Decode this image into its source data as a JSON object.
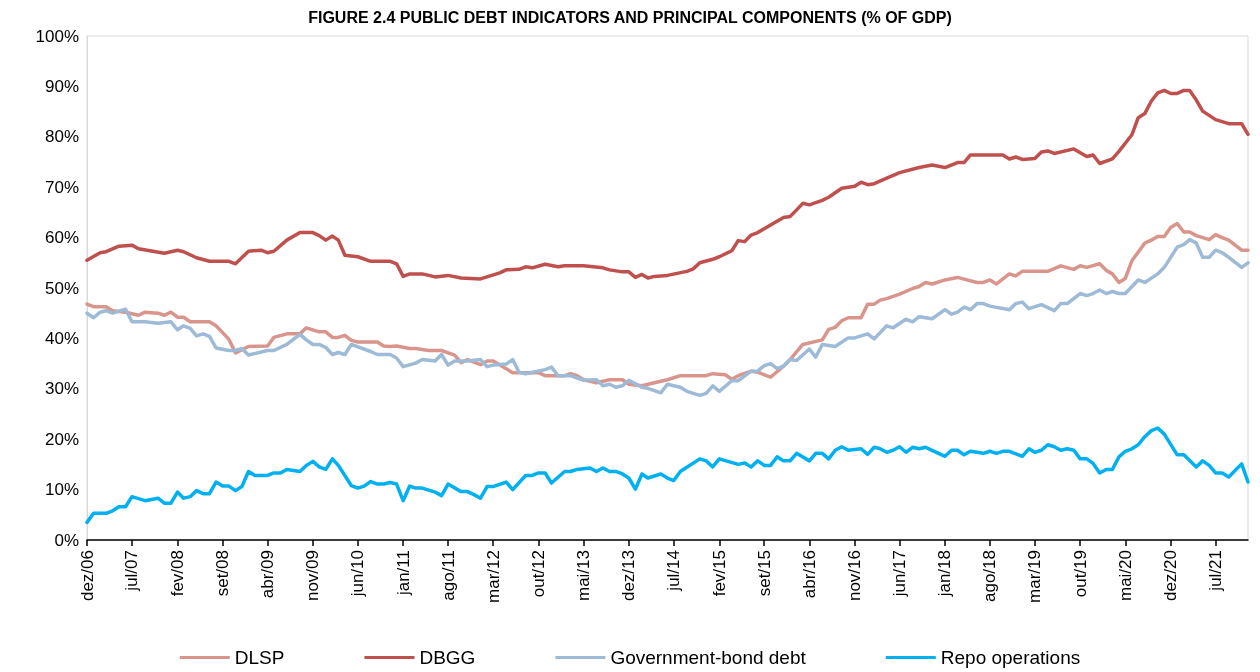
{
  "chart_data": {
    "type": "line",
    "title": "FIGURE 2.4 PUBLIC DEBT INDICATORS AND PRINCIPAL COMPONENTS (% OF GDP)",
    "xlim": [
      "2006-12",
      "2021-12"
    ],
    "xticks": [
      {
        "value": "2006-12",
        "label": "dez/06"
      },
      {
        "value": "2007-07",
        "label": "jul/07"
      },
      {
        "value": "2008-02",
        "label": "fev/08"
      },
      {
        "value": "2008-09",
        "label": "set/08"
      },
      {
        "value": "2009-04",
        "label": "abr/09"
      },
      {
        "value": "2009-11",
        "label": "nov/09"
      },
      {
        "value": "2010-06",
        "label": "jun/10"
      },
      {
        "value": "2011-01",
        "label": "jan/11"
      },
      {
        "value": "2011-08",
        "label": "ago/11"
      },
      {
        "value": "2012-03",
        "label": "mar/12"
      },
      {
        "value": "2012-10",
        "label": "out/12"
      },
      {
        "value": "2013-05",
        "label": "mai/13"
      },
      {
        "value": "2013-12",
        "label": "dez/13"
      },
      {
        "value": "2014-07",
        "label": "jul/14"
      },
      {
        "value": "2015-02",
        "label": "fev/15"
      },
      {
        "value": "2015-09",
        "label": "set/15"
      },
      {
        "value": "2016-04",
        "label": "abr/16"
      },
      {
        "value": "2016-11",
        "label": "nov/16"
      },
      {
        "value": "2017-06",
        "label": "jun/17"
      },
      {
        "value": "2018-01",
        "label": "jan/18"
      },
      {
        "value": "2018-08",
        "label": "ago/18"
      },
      {
        "value": "2019-03",
        "label": "mar/19"
      },
      {
        "value": "2019-10",
        "label": "out/19"
      },
      {
        "value": "2020-05",
        "label": "mai/20"
      },
      {
        "value": "2020-12",
        "label": "dez/20"
      },
      {
        "value": "2021-07",
        "label": "jul/21"
      }
    ],
    "ylim": [
      0,
      100
    ],
    "yticks": [
      {
        "value": 0,
        "label": "0%"
      },
      {
        "value": 10,
        "label": "10%"
      },
      {
        "value": 20,
        "label": "20%"
      },
      {
        "value": 30,
        "label": "30%"
      },
      {
        "value": 40,
        "label": "40%"
      },
      {
        "value": 50,
        "label": "50%"
      },
      {
        "value": 60,
        "label": "60%"
      },
      {
        "value": 70,
        "label": "70%"
      },
      {
        "value": 80,
        "label": "80%"
      },
      {
        "value": 90,
        "label": "90%"
      },
      {
        "value": 100,
        "label": "100%"
      }
    ],
    "legend": "bottom",
    "marker": "none",
    "series": [
      {
        "name": "DLSP",
        "color": "#d9958c",
        "x": [
          "2006-12",
          "2007-01",
          "2007-03",
          "2007-04",
          "2007-06",
          "2007-08",
          "2007-09",
          "2007-11",
          "2007-12",
          "2008-01",
          "2008-02",
          "2008-03",
          "2008-04",
          "2008-07",
          "2008-08",
          "2008-10",
          "2008-11",
          "2009-01",
          "2009-04",
          "2009-05",
          "2009-07",
          "2009-09",
          "2009-10",
          "2009-12",
          "2010-01",
          "2010-02",
          "2010-03",
          "2010-04",
          "2010-05",
          "2010-06",
          "2010-09",
          "2010-10",
          "2010-11",
          "2010-12",
          "2011-02",
          "2011-03",
          "2011-05",
          "2011-07",
          "2011-09",
          "2011-10",
          "2011-11",
          "2012-01",
          "2012-02",
          "2012-03",
          "2012-06",
          "2012-10",
          "2012-11",
          "2013-02",
          "2013-03",
          "2013-04",
          "2013-05",
          "2013-07",
          "2013-09",
          "2013-11",
          "2013-12",
          "2014-02",
          "2014-04",
          "2014-06",
          "2014-08",
          "2014-12",
          "2015-01",
          "2015-03",
          "2015-04",
          "2015-05",
          "2015-07",
          "2015-08",
          "2015-10",
          "2015-12",
          "2016-01",
          "2016-03",
          "2016-06",
          "2016-07",
          "2016-08",
          "2016-09",
          "2016-10",
          "2016-12",
          "2017-01",
          "2017-02",
          "2017-03",
          "2017-04",
          "2017-06",
          "2017-08",
          "2017-09",
          "2017-10",
          "2017-11",
          "2018-01",
          "2018-03",
          "2018-06",
          "2018-07",
          "2018-08",
          "2018-09",
          "2018-11",
          "2018-12",
          "2019-01",
          "2019-05",
          "2019-07",
          "2019-09",
          "2019-10",
          "2019-11",
          "2020-01",
          "2020-02",
          "2020-03",
          "2020-04",
          "2020-05",
          "2020-06",
          "2020-08",
          "2020-09",
          "2020-10",
          "2020-11",
          "2020-12",
          "2021-01",
          "2021-02",
          "2021-03",
          "2021-04",
          "2021-06",
          "2021-07",
          "2021-08",
          "2021-09",
          "2021-11",
          "2021-12"
        ],
        "values": [
          46.8,
          46.3,
          46.3,
          45.5,
          45.2,
          44.6,
          45.2,
          45,
          44.6,
          45.2,
          44.2,
          44.2,
          43.3,
          43.3,
          42.5,
          39.8,
          37.1,
          38.4,
          38.5,
          40.2,
          40.9,
          40.9,
          42.1,
          41.3,
          41.3,
          40.2,
          40.2,
          40.6,
          39.6,
          39.3,
          39.3,
          38.5,
          38.4,
          38.5,
          38,
          38,
          37.6,
          37.6,
          36.7,
          35.2,
          35.8,
          34.8,
          35.5,
          35.5,
          33.2,
          33.2,
          32.6,
          32.6,
          33,
          32.6,
          31.8,
          31.2,
          31.8,
          31.8,
          30.9,
          30.6,
          31.2,
          31.8,
          32.6,
          32.6,
          33,
          32.8,
          31.9,
          32.6,
          33.5,
          33.3,
          32.3,
          34.5,
          35.8,
          38.8,
          39.7,
          41.8,
          42.2,
          43.5,
          44.1,
          44.1,
          46.8,
          46.8,
          47.6,
          47.9,
          48.8,
          49.9,
          50.3,
          51.1,
          50.8,
          51.6,
          52.1,
          51.1,
          51.1,
          51.6,
          50.8,
          52.8,
          52.4,
          53.3,
          53.3,
          54.4,
          53.7,
          54.4,
          54.1,
          54.8,
          53.5,
          52.8,
          51.1,
          51.9,
          55.4,
          58.9,
          59.5,
          60.2,
          60.2,
          62,
          62.8,
          61.1,
          61.1,
          60.4,
          59.6,
          60.6,
          60,
          59.5,
          57.5,
          57.5
        ]
      },
      {
        "name": "DBGG",
        "color": "#c0504d",
        "x": [
          "2006-12",
          "2007-02",
          "2007-03",
          "2007-05",
          "2007-07",
          "2007-08",
          "2007-12",
          "2008-02",
          "2008-03",
          "2008-05",
          "2008-07",
          "2008-10",
          "2008-11",
          "2009-01",
          "2009-03",
          "2009-04",
          "2009-05",
          "2009-07",
          "2009-09",
          "2009-11",
          "2009-12",
          "2010-01",
          "2010-02",
          "2010-03",
          "2010-04",
          "2010-06",
          "2010-08",
          "2010-11",
          "2010-12",
          "2011-01",
          "2011-02",
          "2011-04",
          "2011-06",
          "2011-08",
          "2011-10",
          "2012-01",
          "2012-04",
          "2012-05",
          "2012-07",
          "2012-08",
          "2012-09",
          "2012-11",
          "2013-01",
          "2013-02",
          "2013-05",
          "2013-08",
          "2013-09",
          "2013-11",
          "2013-12",
          "2014-01",
          "2014-02",
          "2014-03",
          "2014-04",
          "2014-06",
          "2014-09",
          "2014-10",
          "2014-11",
          "2015-01",
          "2015-02",
          "2015-04",
          "2015-05",
          "2015-06",
          "2015-07",
          "2015-08",
          "2015-10",
          "2015-12",
          "2016-01",
          "2016-02",
          "2016-03",
          "2016-04",
          "2016-06",
          "2016-07",
          "2016-09",
          "2016-11",
          "2016-12",
          "2017-01",
          "2017-02",
          "2017-04",
          "2017-06",
          "2017-09",
          "2017-11",
          "2018-01",
          "2018-03",
          "2018-04",
          "2018-05",
          "2018-10",
          "2018-11",
          "2018-12",
          "2019-01",
          "2019-03",
          "2019-04",
          "2019-05",
          "2019-06",
          "2019-09",
          "2019-11",
          "2019-12",
          "2020-01",
          "2020-03",
          "2020-04",
          "2020-06",
          "2020-07",
          "2020-08",
          "2020-09",
          "2020-10",
          "2020-11",
          "2020-12",
          "2021-01",
          "2021-02",
          "2021-03",
          "2021-04",
          "2021-05",
          "2021-07",
          "2021-09",
          "2021-11",
          "2021-12"
        ],
        "values": [
          55.5,
          57,
          57.2,
          58.3,
          58.5,
          57.8,
          56.9,
          57.5,
          57.2,
          56,
          55.3,
          55.3,
          54.8,
          57.3,
          57.5,
          57,
          57.3,
          59.5,
          61,
          61,
          60.4,
          59.5,
          60.3,
          59.5,
          56.5,
          56.2,
          55.3,
          55.3,
          54.8,
          52.3,
          52.8,
          52.8,
          52.2,
          52.5,
          52,
          51.8,
          53,
          53.6,
          53.7,
          54.2,
          54,
          54.7,
          54.2,
          54.4,
          54.4,
          54,
          53.6,
          53.2,
          53.2,
          52.1,
          52.7,
          52,
          52.3,
          52.5,
          53.3,
          53.8,
          55,
          55.7,
          56.2,
          57.4,
          59.4,
          59.2,
          60.5,
          61,
          62.5,
          64,
          64.2,
          65.5,
          66.8,
          66.5,
          67.4,
          68,
          69.8,
          70.2,
          71,
          70.5,
          70.7,
          71.8,
          72.9,
          73.9,
          74.4,
          73.9,
          74.9,
          74.9,
          76.4,
          76.4,
          75.6,
          76,
          75.5,
          75.7,
          77,
          77.2,
          76.7,
          77.6,
          76.1,
          76.4,
          74.7,
          75.6,
          77.1,
          80.4,
          83.8,
          84.6,
          87.1,
          88.7,
          89.2,
          88.6,
          88.6,
          89.2,
          89.2,
          87.3,
          85.1,
          83.4,
          82.6,
          82.6,
          80.5
        ]
      },
      {
        "name": "Government-bond debt",
        "color": "#9dbad6",
        "x": [
          "2006-12",
          "2007-01",
          "2007-02",
          "2007-03",
          "2007-04",
          "2007-06",
          "2007-07",
          "2007-09",
          "2007-11",
          "2008-01",
          "2008-02",
          "2008-03",
          "2008-04",
          "2008-05",
          "2008-06",
          "2008-07",
          "2008-08",
          "2008-10",
          "2008-11",
          "2008-12",
          "2009-01",
          "2009-04",
          "2009-05",
          "2009-07",
          "2009-09",
          "2009-10",
          "2009-11",
          "2009-12",
          "2010-01",
          "2010-02",
          "2010-03",
          "2010-04",
          "2010-05",
          "2010-08",
          "2010-09",
          "2010-11",
          "2010-12",
          "2011-01",
          "2011-03",
          "2011-04",
          "2011-06",
          "2011-07",
          "2011-08",
          "2011-09",
          "2011-11",
          "2012-01",
          "2012-02",
          "2012-03",
          "2012-05",
          "2012-06",
          "2012-07",
          "2012-08",
          "2012-11",
          "2012-12",
          "2013-01",
          "2013-03",
          "2013-05",
          "2013-07",
          "2013-08",
          "2013-09",
          "2013-10",
          "2013-11",
          "2013-12",
          "2014-02",
          "2014-03",
          "2014-05",
          "2014-06",
          "2014-08",
          "2014-09",
          "2014-11",
          "2014-12",
          "2015-01",
          "2015-02",
          "2015-04",
          "2015-05",
          "2015-07",
          "2015-08",
          "2015-09",
          "2015-10",
          "2015-11",
          "2015-12",
          "2016-01",
          "2016-02",
          "2016-04",
          "2016-05",
          "2016-06",
          "2016-08",
          "2016-10",
          "2016-11",
          "2017-01",
          "2017-02",
          "2017-04",
          "2017-05",
          "2017-07",
          "2017-08",
          "2017-09",
          "2017-11",
          "2018-01",
          "2018-02",
          "2018-03",
          "2018-04",
          "2018-05",
          "2018-06",
          "2018-07",
          "2018-08",
          "2018-11",
          "2018-12",
          "2019-01",
          "2019-02",
          "2019-04",
          "2019-06",
          "2019-07",
          "2019-08",
          "2019-10",
          "2019-11",
          "2019-12",
          "2020-01",
          "2020-02",
          "2020-03",
          "2020-04",
          "2020-05",
          "2020-07",
          "2020-08",
          "2020-10",
          "2020-11",
          "2021-01",
          "2021-02",
          "2021-03",
          "2021-04",
          "2021-05",
          "2021-06",
          "2021-07",
          "2021-08",
          "2021-09",
          "2021-11",
          "2021-12"
        ],
        "values": [
          45,
          44.1,
          45.2,
          45.5,
          45,
          45.8,
          43.3,
          43.3,
          43,
          43.3,
          41.7,
          42.5,
          42,
          40.5,
          40.9,
          40.4,
          38.1,
          37.6,
          37.6,
          38,
          36.7,
          37.6,
          37.6,
          38.8,
          40.8,
          39.7,
          38.8,
          38.8,
          38.2,
          36.8,
          37.2,
          36.8,
          38.8,
          37.4,
          36.8,
          36.8,
          36.1,
          34.4,
          35.1,
          35.8,
          35.5,
          36.8,
          34.7,
          35.5,
          35.5,
          35.8,
          34.4,
          34.7,
          34.9,
          35.8,
          33.3,
          33,
          33.8,
          34.3,
          32.6,
          32.6,
          31.7,
          31.8,
          30.6,
          30.9,
          30.3,
          30.6,
          31.7,
          30.3,
          30.1,
          29.2,
          30.9,
          30.3,
          29.5,
          28.7,
          29.1,
          30.6,
          29.5,
          31.6,
          31.6,
          33.5,
          33.5,
          34.6,
          35,
          34,
          34.5,
          35.8,
          35.6,
          37.9,
          36.3,
          38.8,
          38.4,
          40.1,
          40.1,
          40.9,
          39.9,
          42.5,
          42.1,
          43.8,
          43.3,
          44.3,
          43.9,
          45.7,
          44.8,
          45.2,
          46.2,
          45.7,
          46.9,
          46.9,
          46.4,
          45.7,
          46.9,
          47.2,
          45.9,
          46.7,
          45.5,
          46.9,
          46.9,
          48.9,
          48.5,
          48.9,
          49.6,
          48.9,
          49.3,
          48.9,
          48.9,
          51.6,
          51.1,
          52.8,
          54.1,
          58.1,
          58.6,
          59.6,
          58.9,
          56.1,
          56.1,
          57.5,
          57,
          56.1,
          54.1,
          55
        ]
      },
      {
        "name": "Repo operations",
        "color": "#00b0f0",
        "x": [
          "2006-12",
          "2007-01",
          "2007-03",
          "2007-04",
          "2007-05",
          "2007-06",
          "2007-07",
          "2007-09",
          "2007-11",
          "2007-12",
          "2008-01",
          "2008-02",
          "2008-03",
          "2008-04",
          "2008-05",
          "2008-06",
          "2008-07",
          "2008-08",
          "2008-09",
          "2008-10",
          "2008-11",
          "2008-12",
          "2009-01",
          "2009-02",
          "2009-04",
          "2009-05",
          "2009-06",
          "2009-07",
          "2009-09",
          "2009-10",
          "2009-11",
          "2009-12",
          "2010-01",
          "2010-02",
          "2010-03",
          "2010-05",
          "2010-06",
          "2010-07",
          "2010-08",
          "2010-09",
          "2010-10",
          "2010-11",
          "2010-12",
          "2011-01",
          "2011-02",
          "2011-03",
          "2011-04",
          "2011-06",
          "2011-07",
          "2011-08",
          "2011-10",
          "2011-11",
          "2011-12",
          "2012-01",
          "2012-02",
          "2012-03",
          "2012-05",
          "2012-06",
          "2012-08",
          "2012-09",
          "2012-10",
          "2012-11",
          "2012-12",
          "2013-02",
          "2013-03",
          "2013-04",
          "2013-06",
          "2013-07",
          "2013-08",
          "2013-09",
          "2013-10",
          "2013-11",
          "2013-12",
          "2014-01",
          "2014-02",
          "2014-03",
          "2014-05",
          "2014-06",
          "2014-07",
          "2014-08",
          "2014-11",
          "2014-12",
          "2015-01",
          "2015-02",
          "2015-05",
          "2015-06",
          "2015-07",
          "2015-08",
          "2015-09",
          "2015-10",
          "2015-11",
          "2015-12",
          "2016-01",
          "2016-02",
          "2016-04",
          "2016-05",
          "2016-06",
          "2016-07",
          "2016-08",
          "2016-09",
          "2016-10",
          "2016-12",
          "2017-01",
          "2017-02",
          "2017-03",
          "2017-04",
          "2017-05",
          "2017-06",
          "2017-07",
          "2017-08",
          "2017-09",
          "2017-10",
          "2017-11",
          "2018-01",
          "2018-02",
          "2018-03",
          "2018-04",
          "2018-05",
          "2018-07",
          "2018-08",
          "2018-09",
          "2018-10",
          "2018-11",
          "2019-01",
          "2019-02",
          "2019-03",
          "2019-04",
          "2019-05",
          "2019-06",
          "2019-07",
          "2019-08",
          "2019-09",
          "2019-10",
          "2019-11",
          "2019-12",
          "2020-01",
          "2020-02",
          "2020-03",
          "2020-04",
          "2020-05",
          "2020-06",
          "2020-07",
          "2020-08",
          "2020-09",
          "2020-10",
          "2020-11",
          "2021-01",
          "2021-02",
          "2021-04",
          "2021-05",
          "2021-06",
          "2021-07",
          "2021-08",
          "2021-09",
          "2021-11",
          "2021-12"
        ],
        "values": [
          3.5,
          5.3,
          5.3,
          5.8,
          6.6,
          6.6,
          8.6,
          7.8,
          8.3,
          7.3,
          7.3,
          9.5,
          8.3,
          8.6,
          9.8,
          9.2,
          9.2,
          11.5,
          10.7,
          10.7,
          9.8,
          10.6,
          13.6,
          12.8,
          12.8,
          13.3,
          13.3,
          14,
          13.6,
          14.8,
          15.6,
          14.5,
          14,
          16.1,
          14.8,
          10.8,
          10.3,
          10.7,
          11.6,
          11.1,
          11.1,
          11.4,
          11.1,
          7.8,
          10.7,
          10.3,
          10.3,
          9.5,
          8.8,
          11.1,
          9.6,
          9.6,
          9,
          8.3,
          10.6,
          10.6,
          11.5,
          10,
          12.8,
          12.8,
          13.3,
          13.3,
          11.3,
          13.6,
          13.6,
          14,
          14.3,
          13.6,
          14.3,
          13.6,
          13.6,
          13.1,
          12.3,
          10.1,
          13.1,
          12.3,
          13.1,
          12.3,
          11.8,
          13.6,
          16.1,
          15.7,
          14.5,
          16.1,
          15,
          15.3,
          14.5,
          15.7,
          14.8,
          14.8,
          16.5,
          15.7,
          15.7,
          17.2,
          15.7,
          17.2,
          17.2,
          16.1,
          17.8,
          18.5,
          17.8,
          18.1,
          17,
          18.4,
          18.1,
          17.4,
          17.8,
          18.5,
          17.4,
          18.4,
          18.1,
          18.4,
          17.8,
          16.6,
          17.8,
          17.8,
          16.9,
          17.6,
          17.2,
          17.6,
          17.2,
          17.6,
          17.6,
          16.6,
          18.1,
          17.4,
          17.8,
          18.9,
          18.5,
          17.8,
          18.1,
          17.8,
          16.1,
          16.1,
          15.2,
          13.3,
          14,
          14,
          16.5,
          17.6,
          18.1,
          18.9,
          20.5,
          21.7,
          22.2,
          21,
          16.9,
          16.9,
          14.5,
          15.7,
          14.8,
          13.3,
          13.3,
          12.5,
          15.1,
          11.5
        ]
      }
    ]
  }
}
